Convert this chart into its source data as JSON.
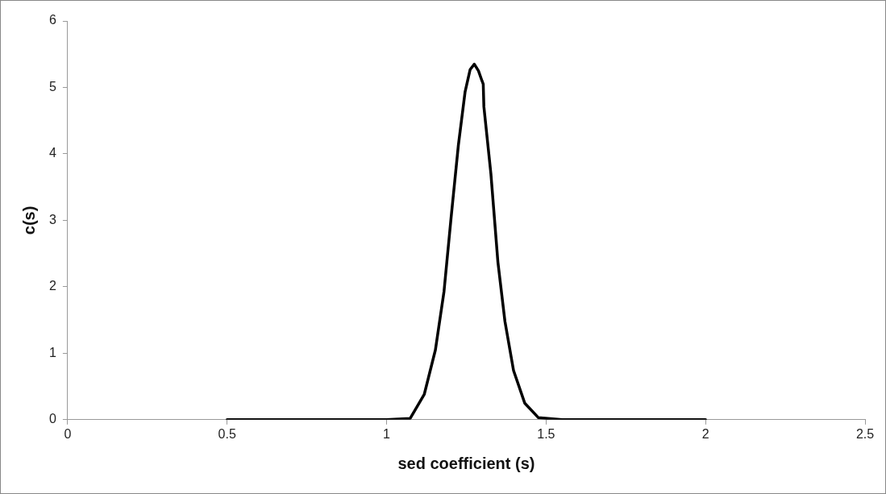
{
  "chart_data": {
    "type": "line",
    "xlabel": "sed coefficient (s)",
    "ylabel": "c(s)",
    "series": [
      {
        "color": "#000000",
        "x": [
          0.5,
          0.8,
          1.0,
          1.074,
          1.118,
          1.153,
          1.18,
          1.202,
          1.225,
          1.246,
          1.262,
          1.275,
          1.288,
          1.299,
          1.303,
          1.305,
          1.327,
          1.349,
          1.371,
          1.398,
          1.433,
          1.476,
          1.55,
          1.7,
          2.0
        ],
        "values": [
          0,
          0,
          0,
          0.02,
          0.38,
          1.05,
          1.93,
          3.03,
          4.13,
          4.93,
          5.27,
          5.35,
          5.25,
          5.1,
          5.05,
          4.71,
          3.7,
          2.37,
          1.48,
          0.74,
          0.25,
          0.03,
          0,
          0,
          0
        ]
      }
    ],
    "xlim": [
      0,
      2.5
    ],
    "xticks": [
      0,
      0.5,
      1,
      1.5,
      2,
      2.5
    ],
    "ylim": [
      0,
      6
    ],
    "yticks": [
      0,
      1,
      2,
      3,
      4,
      5,
      6
    ],
    "grid": false,
    "legend": false,
    "marker": "none",
    "line_style": "solid"
  }
}
